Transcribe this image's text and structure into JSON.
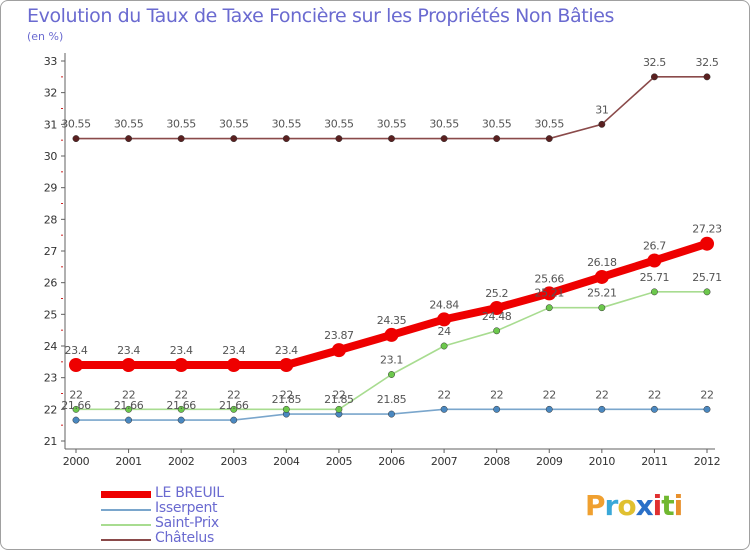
{
  "header": {
    "title": "Evolution du Taux de Taxe Foncière sur les Propriétés Non Bâties",
    "subtitle": "(en %)"
  },
  "brand": {
    "letters": [
      "P",
      "r",
      "o",
      "x",
      "i",
      "t",
      "i"
    ],
    "colors": [
      "#f0a030",
      "#3aa8d8",
      "#e0c030",
      "#2a70c8",
      "#e03030",
      "#70b830",
      "#e8902c"
    ]
  },
  "chart_data": {
    "type": "line",
    "title": "Evolution du Taux de Taxe Foncière sur les Propriétés Non Bâties",
    "ylabel": "(en %)",
    "xlabel": "",
    "ylim": [
      21,
      33
    ],
    "yticks": [
      "21",
      "22",
      "23",
      "24",
      "25",
      "26",
      "27",
      "28",
      "29",
      "30",
      "31",
      "32",
      "33"
    ],
    "categories": [
      "2000",
      "2001",
      "2002",
      "2003",
      "2004",
      "2005",
      "2006",
      "2007",
      "2008",
      "2009",
      "2010",
      "2011",
      "2012"
    ],
    "grid": false,
    "series": [
      {
        "name": "Isserpent",
        "color": "#7aa6cc",
        "marker": "#4a88c0",
        "values": [
          21.66,
          21.66,
          21.66,
          21.66,
          21.85,
          21.85,
          21.85,
          22,
          22,
          22,
          22,
          22,
          22
        ],
        "labels": [
          "21.66",
          "21.66",
          "21.66",
          "21.66",
          "21.85",
          "21.85",
          "21.85",
          "22",
          "22",
          "22",
          "22",
          "22",
          "22"
        ]
      },
      {
        "name": "Saint-Prix",
        "color": "#a8dc90",
        "marker": "#6cc84c",
        "values": [
          22,
          22,
          22,
          22,
          22,
          22,
          23.1,
          24,
          24.48,
          25.21,
          25.21,
          25.71,
          25.71
        ],
        "labels": [
          "22",
          "22",
          "22",
          "22",
          "22",
          "22",
          "23.1",
          "24",
          "24.48",
          "25.21",
          "25.21",
          "25.71",
          "25.71"
        ]
      },
      {
        "name": "Châtelus",
        "color": "#8a4a4a",
        "marker": "#5a2020",
        "values": [
          30.55,
          30.55,
          30.55,
          30.55,
          30.55,
          30.55,
          30.55,
          30.55,
          30.55,
          30.55,
          31,
          32.5,
          32.5
        ],
        "labels": [
          "30.55",
          "30.55",
          "30.55",
          "30.55",
          "30.55",
          "30.55",
          "30.55",
          "30.55",
          "30.55",
          "30.55",
          "31",
          "32.5",
          "32.5"
        ]
      },
      {
        "name": "LE BREUIL",
        "color": "#ee0000",
        "marker": "#ee0000",
        "values": [
          23.4,
          23.4,
          23.4,
          23.4,
          23.4,
          23.87,
          24.35,
          24.84,
          25.2,
          25.66,
          26.18,
          26.7,
          27.23
        ],
        "labels": [
          "23.4",
          "23.4",
          "23.4",
          "23.4",
          "23.4",
          "23.87",
          "24.35",
          "24.84",
          "25.2",
          "25.66",
          "26.18",
          "26.7",
          "27.23"
        ]
      }
    ],
    "legend": {
      "placement": "bottom-left",
      "entries": [
        "LE BREUIL",
        "Isserpent",
        "Saint-Prix",
        "Châtelus"
      ]
    }
  }
}
